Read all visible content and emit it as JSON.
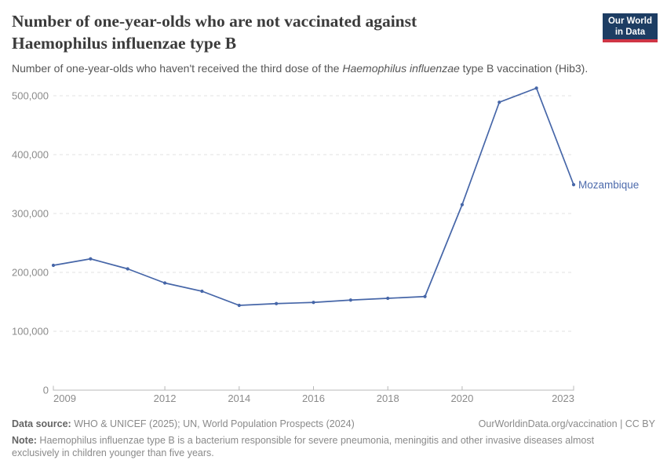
{
  "header": {
    "title_line1": "Number of one-year-olds who are not vaccinated against",
    "title_line2": "Haemophilus influenzae type B",
    "subtitle_prefix": "Number of one-year-olds who haven't received the third dose of the ",
    "subtitle_italic": "Haemophilus influenzae",
    "subtitle_suffix": " type B vaccination (Hib3).",
    "logo": {
      "line1": "Our World",
      "line2": "in Data",
      "bg": "#1d3d63",
      "accent": "#cf3545"
    }
  },
  "chart_data": {
    "type": "line",
    "title": "Number of one-year-olds who are not vaccinated against Haemophilus influenzae type B",
    "subtitle": "Number of one-year-olds who haven't received the third dose of the Haemophilus influenzae type B vaccination (Hib3).",
    "x": [
      2009,
      2010,
      2011,
      2012,
      2013,
      2014,
      2015,
      2016,
      2017,
      2018,
      2019,
      2020,
      2021,
      2022,
      2023
    ],
    "series": [
      {
        "name": "Mozambique",
        "color": "#4666a8",
        "values": [
          212000,
          223000,
          206000,
          182000,
          168000,
          144000,
          147000,
          149000,
          153000,
          156000,
          159000,
          315000,
          489000,
          513000,
          349000
        ]
      }
    ],
    "xlim": [
      2009,
      2023
    ],
    "ylim": [
      0,
      500000
    ],
    "yticks": [
      {
        "v": 0,
        "label": "0"
      },
      {
        "v": 100000,
        "label": "100,000"
      },
      {
        "v": 200000,
        "label": "200,000"
      },
      {
        "v": 300000,
        "label": "300,000"
      },
      {
        "v": 400000,
        "label": "400,000"
      },
      {
        "v": 500000,
        "label": "500,000"
      }
    ],
    "xticks": [
      {
        "v": 2009,
        "label": "2009"
      },
      {
        "v": 2012,
        "label": "2012"
      },
      {
        "v": 2014,
        "label": "2014"
      },
      {
        "v": 2016,
        "label": "2016"
      },
      {
        "v": 2018,
        "label": "2018"
      },
      {
        "v": 2020,
        "label": "2020"
      },
      {
        "v": 2023,
        "label": "2023"
      }
    ],
    "grid": {
      "horizontal": true,
      "style": "dashed",
      "color": "#e2e2e2"
    },
    "axis_color": "#b8b8b8",
    "tick_label_color": "#8b8b8b",
    "entity_label_color": "#4d6bac",
    "legend_position": "end-of-line"
  },
  "footer": {
    "datasource_label": "Data source:",
    "datasource_text": " WHO & UNICEF (2025); UN, World Population Prospects (2024)",
    "credit": "OurWorldinData.org/vaccination | CC BY",
    "note_label": "Note:",
    "note_text": " Haemophilus influenzae type B is a bacterium responsible for severe pneumonia, meningitis and other invasive diseases almost exclusively in children younger than five years."
  }
}
